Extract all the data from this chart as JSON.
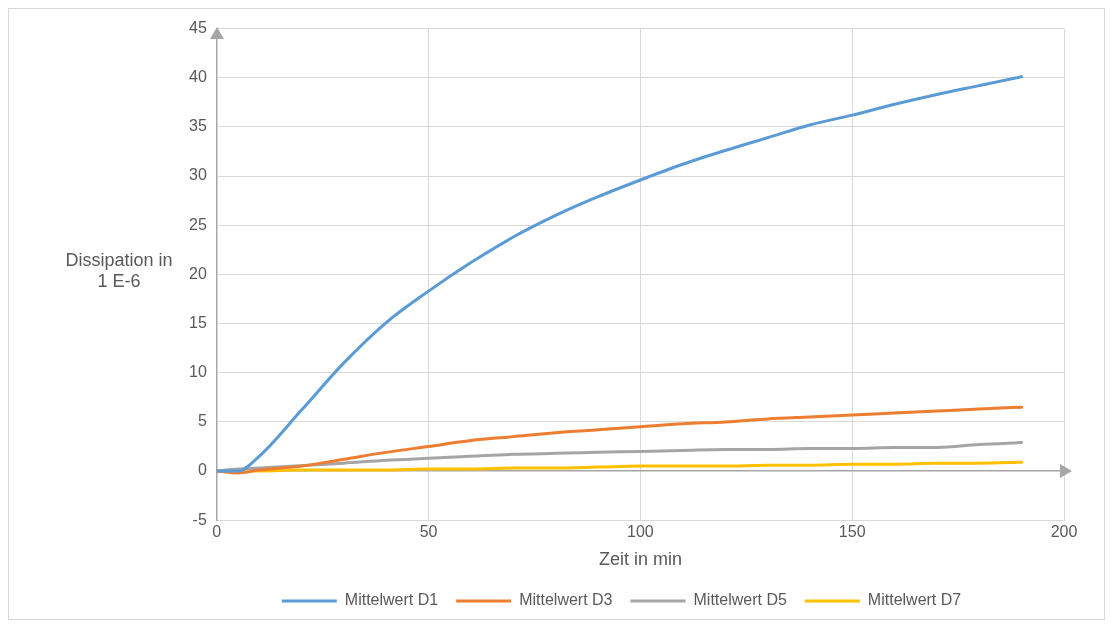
{
  "chart_data": {
    "type": "line",
    "xlabel": "Zeit in min",
    "ylabel": "Dissipation in 1 E-6",
    "xlim": [
      0,
      200
    ],
    "xticks": [
      0,
      50,
      100,
      150,
      200
    ],
    "ylim": [
      -5,
      45
    ],
    "yticks": [
      -5,
      0,
      5,
      10,
      15,
      20,
      25,
      30,
      35,
      40,
      45
    ],
    "grid": true,
    "legend": "bottom",
    "marker": "none",
    "line_style": "solid",
    "x": [
      0,
      5,
      10,
      20,
      30,
      40,
      50,
      60,
      70,
      80,
      90,
      100,
      110,
      120,
      130,
      140,
      150,
      160,
      170,
      180,
      190
    ],
    "series": [
      {
        "name": "Mittelwert D1",
        "color": "#5b9bd5",
        "values": [
          0,
          0,
          1.5,
          6.2,
          11,
          15.1,
          18.3,
          21.2,
          23.8,
          26,
          27.9,
          29.6,
          31.2,
          32.6,
          33.9,
          35.2,
          36.2,
          37.3,
          38.3,
          39.2,
          40.1
        ]
      },
      {
        "name": "Mittelwert D3",
        "color": "#ed7d31",
        "values": [
          0,
          -0.2,
          0.1,
          0.5,
          1.2,
          1.9,
          2.5,
          3.1,
          3.5,
          3.9,
          4.2,
          4.5,
          4.8,
          5,
          5.3,
          5.5,
          5.7,
          5.9,
          6.1,
          6.3,
          6.5
        ]
      },
      {
        "name": "Mittelwert D5",
        "color": "#a5a5a5",
        "values": [
          0,
          0.2,
          0.3,
          null,
          0.8,
          1.1,
          1.3,
          1.5,
          1.7,
          1.8,
          1.9,
          2,
          2.1,
          2.2,
          2.2,
          2.3,
          2.3,
          2.4,
          2.4,
          2.7,
          2.9
        ]
      },
      {
        "name": "Mittelwert D7",
        "color": "#ffc000",
        "values": [
          0,
          0,
          0,
          0.1,
          0.1,
          0.1,
          0.2,
          0.2,
          0.3,
          0.3,
          0.4,
          0.5,
          0.5,
          0.5,
          0.6,
          0.6,
          0.7,
          0.7,
          0.8,
          0.8,
          0.9
        ]
      }
    ]
  }
}
